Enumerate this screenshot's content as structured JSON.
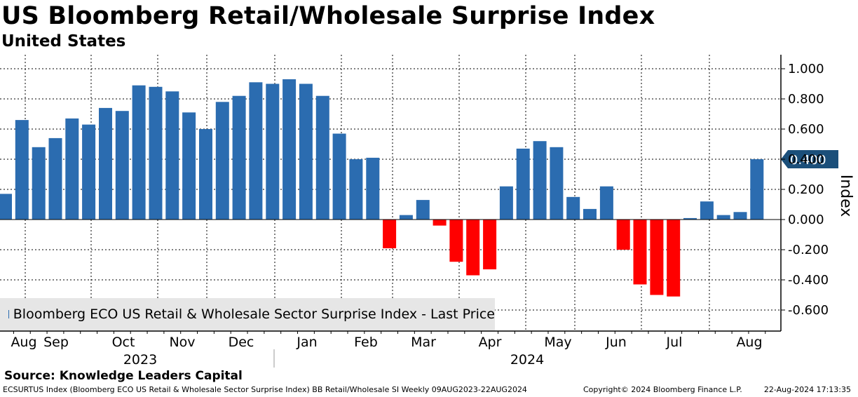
{
  "chart_data": {
    "type": "bar",
    "title": "US Bloomberg Retail/Wholesale Surprise Index",
    "subtitle": "United States",
    "ylabel": "Index",
    "ylim": [
      -0.7,
      1.1
    ],
    "yticks": [
      "1.000",
      "0.800",
      "0.600",
      "0.400",
      "0.200",
      "0.000",
      "-0.200",
      "-0.400",
      "-0.600"
    ],
    "ytick_values": [
      1.0,
      0.8,
      0.6,
      0.4,
      0.2,
      0.0,
      -0.2,
      -0.4,
      -0.6
    ],
    "frequency": "Weekly",
    "legend": "Bloomberg ECO US Retail & Wholesale Sector Surprise Index - Last Price",
    "legend_position": "bottom-left",
    "last_price_label": "0.400",
    "last_value": 0.4,
    "positive_color": "#2b6cb0",
    "negative_color": "#ff0000",
    "months": [
      "Aug",
      "Sep",
      "Oct",
      "Nov",
      "Dec",
      "Jan",
      "Feb",
      "Mar",
      "Apr",
      "May",
      "Jun",
      "Jul",
      "Aug"
    ],
    "years": [
      "2023",
      "2024"
    ],
    "values": [
      0.17,
      0.66,
      0.48,
      0.54,
      0.67,
      0.63,
      0.74,
      0.72,
      0.89,
      0.88,
      0.85,
      0.71,
      0.6,
      0.78,
      0.82,
      0.91,
      0.9,
      0.93,
      0.9,
      0.82,
      0.57,
      0.4,
      0.41,
      -0.19,
      0.03,
      0.13,
      -0.04,
      -0.28,
      -0.37,
      -0.33,
      0.22,
      0.47,
      0.52,
      0.48,
      0.15,
      0.07,
      0.22,
      -0.2,
      -0.43,
      -0.5,
      -0.51,
      0.01,
      0.12,
      0.03,
      0.05,
      0.4
    ]
  },
  "source": "Source: Knowledge Leaders Capital",
  "footer": {
    "left": "ECSURTUS Index (Bloomberg ECO US Retail & Wholesale Sector Surprise Index) BB Retail/Wholesale SI  Weekly 09AUG2023-22AUG2024",
    "copyright": "Copyright© 2024 Bloomberg Finance L.P.",
    "timestamp": "22-Aug-2024 17:13:35"
  }
}
